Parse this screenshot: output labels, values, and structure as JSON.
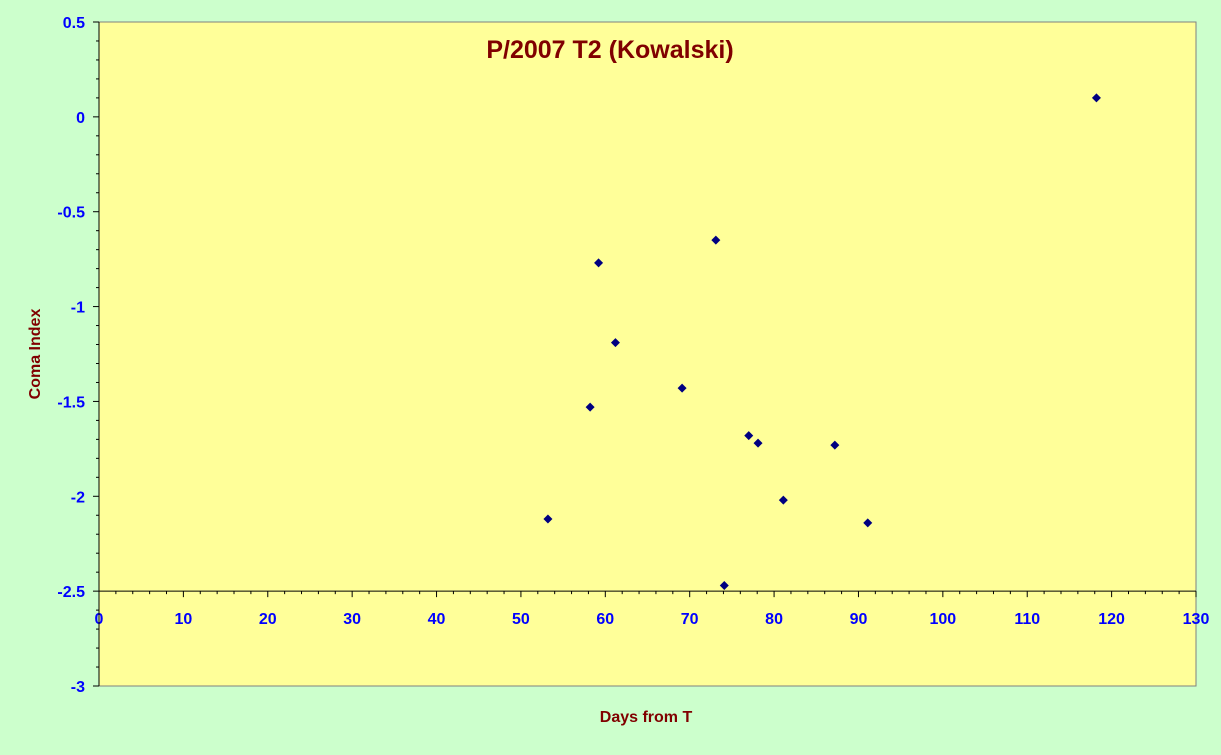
{
  "chart_data": {
    "type": "scatter",
    "title": "P/2007 T2 (Kowalski)",
    "xlabel": "Days from T",
    "ylabel": "Coma Index",
    "xlim": [
      0,
      130
    ],
    "ylim": [
      -3,
      0.5
    ],
    "x_ticks": [
      0,
      10,
      20,
      30,
      40,
      50,
      60,
      70,
      80,
      90,
      100,
      110,
      120,
      130
    ],
    "y_ticks": [
      0.5,
      0,
      -0.5,
      -1,
      -1.5,
      -2,
      -2.5,
      -3
    ],
    "x_axis_crosses_y_at": -2.5,
    "grid": false,
    "legend": "none",
    "series": [
      {
        "marker": "diamond",
        "x": [
          53.2,
          58.2,
          59.2,
          61.2,
          69.1,
          73.1,
          74.1,
          77.0,
          78.1,
          81.1,
          87.2,
          91.1,
          118.2
        ],
        "y": [
          -2.12,
          -1.53,
          -0.77,
          -1.19,
          -1.43,
          -0.65,
          -2.47,
          -1.68,
          -1.72,
          -2.02,
          -1.73,
          -2.14,
          0.1
        ]
      }
    ],
    "colors": {
      "plot_background": "#ffff99",
      "page_background": "#ccffcc",
      "marker": "#000080",
      "title_text": "#800000",
      "axis_label_text": "#800000",
      "tick_label_text": "#0000ff"
    }
  }
}
